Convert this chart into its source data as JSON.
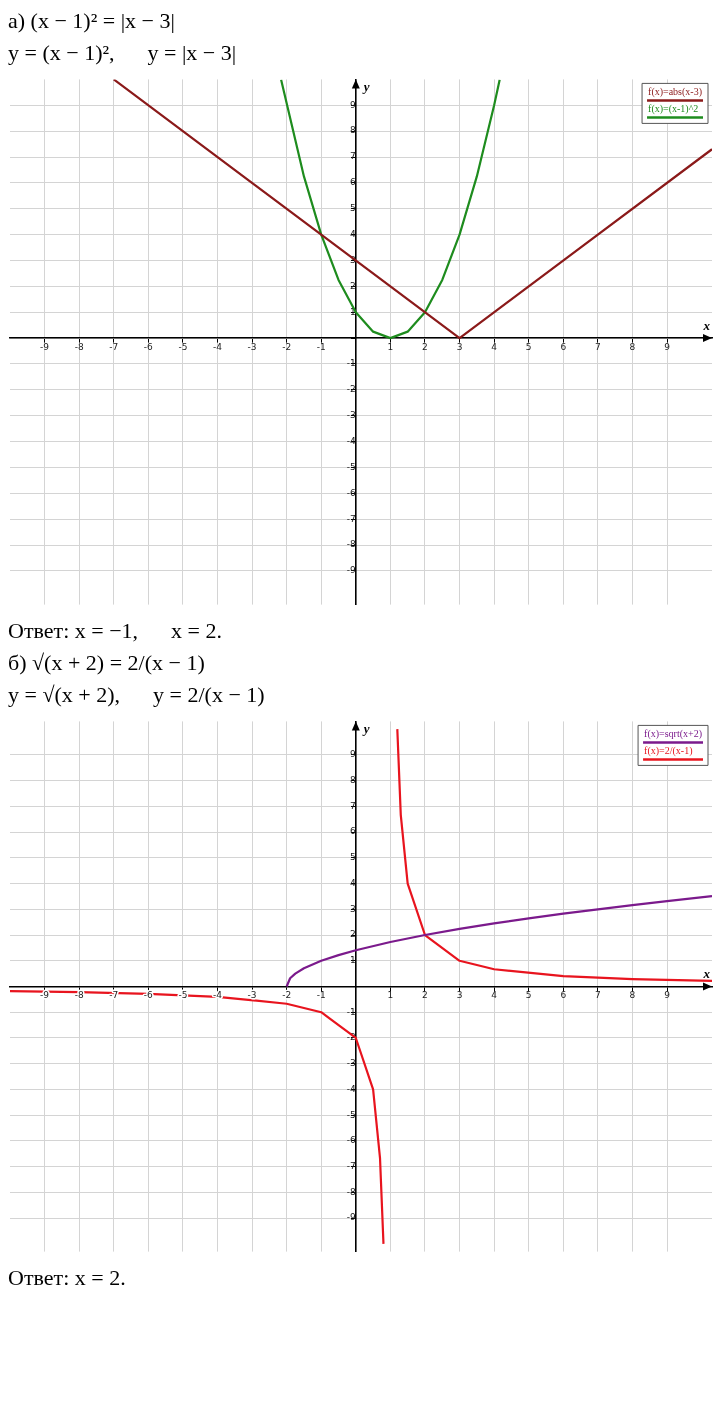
{
  "chart_data": [
    {
      "type": "line",
      "title": "а) (x − 1)² = |x − 3|",
      "subtitle": "y = (x − 1)²,      y = |x − 3|",
      "annotations": [
        "Ответ: x = −1,      x = 2."
      ],
      "xlabel": "x",
      "ylabel": "y",
      "xlim": [
        -10,
        10.3
      ],
      "ylim": [
        -10.3,
        10
      ],
      "xticks": [
        -9,
        -8,
        -7,
        -6,
        -5,
        -4,
        -3,
        -2,
        -1,
        {
          "value": 0,
          "label": null
        },
        1,
        2,
        3,
        4,
        5,
        6,
        7,
        8,
        9
      ],
      "yticks": [
        -9,
        -8,
        -7,
        -6,
        -5,
        -4,
        -3,
        -2,
        -1,
        {
          "value": 0,
          "label": null
        },
        1,
        2,
        3,
        4,
        5,
        6,
        7,
        8,
        9
      ],
      "grid": true,
      "legend": "top right",
      "marker": "none",
      "series": [
        {
          "name": "f(x)=abs(x-3)",
          "color": "#8b1a1a",
          "x": [
            -7,
            3,
            10.3
          ],
          "values": [
            10,
            0,
            7.3
          ]
        },
        {
          "name": "f(x)=(x-1)^2",
          "color": "#1e8c1e",
          "x": [
            -2.16,
            -1.5,
            -1,
            -0.5,
            0,
            0.5,
            1,
            1.5,
            2,
            2.5,
            3,
            3.5,
            4,
            4.16
          ],
          "values": [
            9.99,
            6.25,
            4,
            2.25,
            1,
            0.25,
            0,
            0.25,
            1,
            2.25,
            4,
            6.25,
            9,
            9.99
          ]
        }
      ]
    },
    {
      "type": "line",
      "title": "б) √(x + 2) = 2/(x − 1)",
      "subtitle": "y = √(x + 2),      y = 2/(x − 1)",
      "annotations": [
        "Ответ: x = 2."
      ],
      "xlabel": "x",
      "ylabel": "y",
      "xlim": [
        -10,
        10.3
      ],
      "ylim": [
        -10.3,
        10.3
      ],
      "xticks": [
        -9,
        -8,
        -7,
        -6,
        -5,
        -4,
        -3,
        -2,
        -1,
        {
          "value": 0,
          "label": null
        },
        1,
        2,
        3,
        4,
        5,
        6,
        7,
        8,
        9
      ],
      "yticks": [
        -9,
        -8,
        -7,
        -6,
        -5,
        -4,
        -3,
        -2,
        -1,
        {
          "value": 0,
          "label": null
        },
        1,
        2,
        3,
        4,
        5,
        6,
        7,
        8,
        9
      ],
      "grid": true,
      "legend": "top right",
      "marker": "none",
      "series": [
        {
          "name": "f(x)=sqrt(x+2)",
          "color": "#7b1a8c",
          "x": [
            -2,
            -1.9,
            -1.75,
            -1.5,
            -1,
            -0.5,
            0,
            1,
            2,
            3,
            4,
            5,
            6,
            7,
            8,
            9,
            10.3
          ],
          "values": [
            0,
            0.32,
            0.5,
            0.71,
            1,
            1.22,
            1.41,
            1.73,
            2,
            2.24,
            2.45,
            2.65,
            2.83,
            3,
            3.16,
            3.32,
            3.51
          ]
        },
        {
          "name": "f(x)=2/(x-1)",
          "color": "#e8141e",
          "x": [
            -10,
            -8,
            -6,
            -4,
            -2,
            -1,
            0,
            0.5,
            0.7,
            0.8,
            1,
            1.2,
            1.3,
            1.5,
            2,
            3,
            4,
            6,
            8,
            10.3
          ],
          "values": [
            -0.18,
            -0.22,
            -0.29,
            -0.4,
            -0.67,
            -1,
            -2,
            -4,
            -6.67,
            -10,
            null,
            10,
            6.67,
            4,
            2,
            1,
            0.67,
            0.4,
            0.29,
            0.22
          ]
        }
      ]
    }
  ]
}
